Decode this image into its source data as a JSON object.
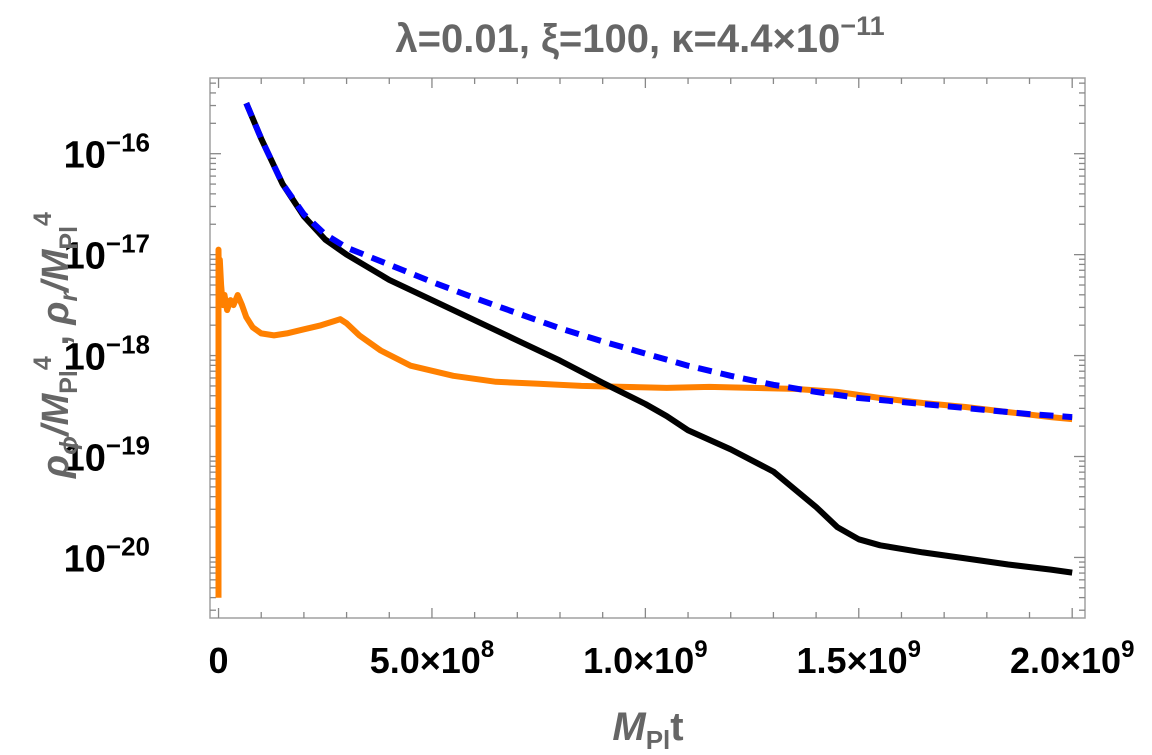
{
  "chart_data": {
    "type": "line",
    "title": "λ=0.01, ξ=100, κ=4.4×10",
    "title_exp": "−11",
    "xlabel": {
      "main": "M",
      "sub": "Pl",
      "tail": "t"
    },
    "ylabel": {
      "part1_main": "ρ",
      "part1_sub": "ϕ",
      "part1_mid": "/M",
      "part1_sub2": "Pl",
      "part1_exp": "4",
      "sep": " , ",
      "part2_main": "ρ",
      "part2_sub": "r",
      "part2_mid": "/M",
      "part2_sub2": "Pl",
      "part2_exp": "4"
    },
    "xlim": [
      -20000000,
      2030000000
    ],
    "ylim_log10": [
      -20.6,
      -15.25
    ],
    "y_scale": "log",
    "grid": false,
    "x_ticks": [
      {
        "value": 0,
        "mant": "0",
        "exp": ""
      },
      {
        "value": 500000000,
        "mant": "5.0×10",
        "exp": "8"
      },
      {
        "value": 1000000000,
        "mant": "1.0×10",
        "exp": "9"
      },
      {
        "value": 1500000000,
        "mant": "1.5×10",
        "exp": "9"
      },
      {
        "value": 2000000000,
        "mant": "2.0×10",
        "exp": "9"
      }
    ],
    "y_ticks": [
      {
        "log10": -16,
        "base": "10",
        "exp": "−16"
      },
      {
        "log10": -17,
        "base": "10",
        "exp": "−17"
      },
      {
        "log10": -18,
        "base": "10",
        "exp": "−18"
      },
      {
        "log10": -19,
        "base": "10",
        "exp": "−19"
      },
      {
        "log10": -20,
        "base": "10",
        "exp": "−20"
      }
    ],
    "series": [
      {
        "color": "#ff8000",
        "dash": "solid",
        "points": [
          [
            0,
            -20.4
          ],
          [
            0,
            -16.95
          ],
          [
            1000000,
            -17.4
          ],
          [
            3000000,
            -17.05
          ],
          [
            6000000,
            -17.3
          ],
          [
            10000000,
            -17.5
          ],
          [
            14000000,
            -17.4
          ],
          [
            20000000,
            -17.55
          ],
          [
            28000000,
            -17.45
          ],
          [
            35000000,
            -17.5
          ],
          [
            45000000,
            -17.4
          ],
          [
            55000000,
            -17.5
          ],
          [
            65000000,
            -17.62
          ],
          [
            80000000,
            -17.72
          ],
          [
            100000000,
            -17.78
          ],
          [
            130000000,
            -17.8
          ],
          [
            160000000,
            -17.78
          ],
          [
            200000000,
            -17.74
          ],
          [
            240000000,
            -17.7
          ],
          [
            270000000,
            -17.66
          ],
          [
            285000000,
            -17.64
          ],
          [
            300000000,
            -17.68
          ],
          [
            330000000,
            -17.8
          ],
          [
            380000000,
            -17.95
          ],
          [
            450000000,
            -18.1
          ],
          [
            550000000,
            -18.2
          ],
          [
            650000000,
            -18.26
          ],
          [
            750000000,
            -18.28
          ],
          [
            850000000,
            -18.3
          ],
          [
            950000000,
            -18.31
          ],
          [
            1050000000,
            -18.32
          ],
          [
            1150000000,
            -18.31
          ],
          [
            1250000000,
            -18.32
          ],
          [
            1350000000,
            -18.33
          ],
          [
            1450000000,
            -18.36
          ],
          [
            1550000000,
            -18.42
          ],
          [
            1650000000,
            -18.47
          ],
          [
            1750000000,
            -18.51
          ],
          [
            1850000000,
            -18.56
          ],
          [
            1950000000,
            -18.61
          ],
          [
            2000000000,
            -18.63
          ]
        ]
      },
      {
        "color": "#000000",
        "dash": "solid",
        "points": [
          [
            65000000,
            -15.5
          ],
          [
            100000000,
            -15.85
          ],
          [
            150000000,
            -16.3
          ],
          [
            200000000,
            -16.62
          ],
          [
            250000000,
            -16.85
          ],
          [
            300000000,
            -17.0
          ],
          [
            400000000,
            -17.25
          ],
          [
            500000000,
            -17.45
          ],
          [
            600000000,
            -17.65
          ],
          [
            700000000,
            -17.85
          ],
          [
            800000000,
            -18.05
          ],
          [
            900000000,
            -18.27
          ],
          [
            1000000000,
            -18.48
          ],
          [
            1050000000,
            -18.6
          ],
          [
            1100000000,
            -18.74
          ],
          [
            1200000000,
            -18.93
          ],
          [
            1300000000,
            -19.15
          ],
          [
            1400000000,
            -19.5
          ],
          [
            1450000000,
            -19.7
          ],
          [
            1500000000,
            -19.82
          ],
          [
            1550000000,
            -19.88
          ],
          [
            1650000000,
            -19.95
          ],
          [
            1750000000,
            -20.01
          ],
          [
            1850000000,
            -20.07
          ],
          [
            1950000000,
            -20.12
          ],
          [
            2000000000,
            -20.15
          ]
        ]
      },
      {
        "color": "#0000ff",
        "dash": "dashed",
        "points": [
          [
            65000000,
            -15.5
          ],
          [
            100000000,
            -15.85
          ],
          [
            150000000,
            -16.3
          ],
          [
            200000000,
            -16.6
          ],
          [
            250000000,
            -16.8
          ],
          [
            300000000,
            -16.93
          ],
          [
            400000000,
            -17.1
          ],
          [
            500000000,
            -17.27
          ],
          [
            600000000,
            -17.43
          ],
          [
            700000000,
            -17.58
          ],
          [
            800000000,
            -17.73
          ],
          [
            900000000,
            -17.86
          ],
          [
            1000000000,
            -17.98
          ],
          [
            1100000000,
            -18.1
          ],
          [
            1200000000,
            -18.2
          ],
          [
            1300000000,
            -18.29
          ],
          [
            1400000000,
            -18.36
          ],
          [
            1500000000,
            -18.42
          ],
          [
            1600000000,
            -18.46
          ],
          [
            1700000000,
            -18.5
          ],
          [
            1800000000,
            -18.54
          ],
          [
            1900000000,
            -18.58
          ],
          [
            2000000000,
            -18.61
          ]
        ]
      }
    ]
  }
}
